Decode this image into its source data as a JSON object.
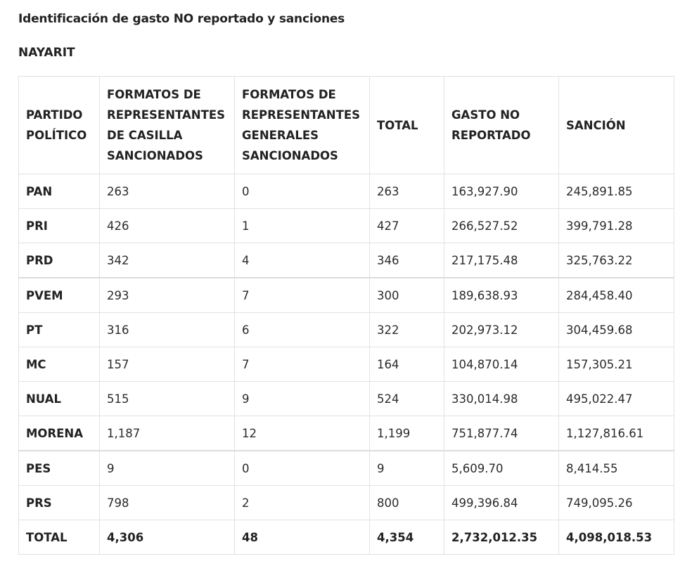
{
  "title": "Identificación de gasto NO reportado y sanciones",
  "subtitle": "NAYARIT",
  "table": {
    "headers": [
      "PARTIDO POLÍTICO",
      "FORMATOS DE REPRESENTANTES DE CASILLA SANCIONADOS",
      "FORMATOS DE REPRESENTANTES GENERALES SANCIONADOS",
      "TOTAL",
      "GASTO NO REPORTADO",
      "SANCIÓN"
    ],
    "rows": [
      {
        "party": "PAN",
        "casilla": "263",
        "generales": "0",
        "total": "263",
        "gasto": "163,927.90",
        "sancion": "245,891.85"
      },
      {
        "party": "PRI",
        "casilla": "426",
        "generales": "1",
        "total": "427",
        "gasto": "266,527.52",
        "sancion": "399,791.28"
      },
      {
        "party": "PRD",
        "casilla": "342",
        "generales": "4",
        "total": "346",
        "gasto": "217,175.48",
        "sancion": "325,763.22"
      },
      {
        "party": "PVEM",
        "casilla": "293",
        "generales": "7",
        "total": "300",
        "gasto": "189,638.93",
        "sancion": "284,458.40"
      },
      {
        "party": "PT",
        "casilla": "316",
        "generales": "6",
        "total": "322",
        "gasto": "202,973.12",
        "sancion": "304,459.68"
      },
      {
        "party": "MC",
        "casilla": "157",
        "generales": "7",
        "total": "164",
        "gasto": "104,870.14",
        "sancion": "157,305.21"
      },
      {
        "party": "NUAL",
        "casilla": "515",
        "generales": "9",
        "total": "524",
        "gasto": "330,014.98",
        "sancion": "495,022.47"
      },
      {
        "party": "MORENA",
        "casilla": "1,187",
        "generales": "12",
        "total": "1,199",
        "gasto": "751,877.74",
        "sancion": "1,127,816.61"
      },
      {
        "party": "PES",
        "casilla": "9",
        "generales": "0",
        "total": "9",
        "gasto": "5,609.70",
        "sancion": "8,414.55"
      },
      {
        "party": "PRS",
        "casilla": "798",
        "generales": "2",
        "total": "800",
        "gasto": "499,396.84",
        "sancion": "749,095.26"
      }
    ],
    "total_row": {
      "party": "TOTAL",
      "casilla": "4,306",
      "generales": "48",
      "total": "4,354",
      "gasto": "2,732,012.35",
      "sancion": "4,098,018.53"
    }
  }
}
